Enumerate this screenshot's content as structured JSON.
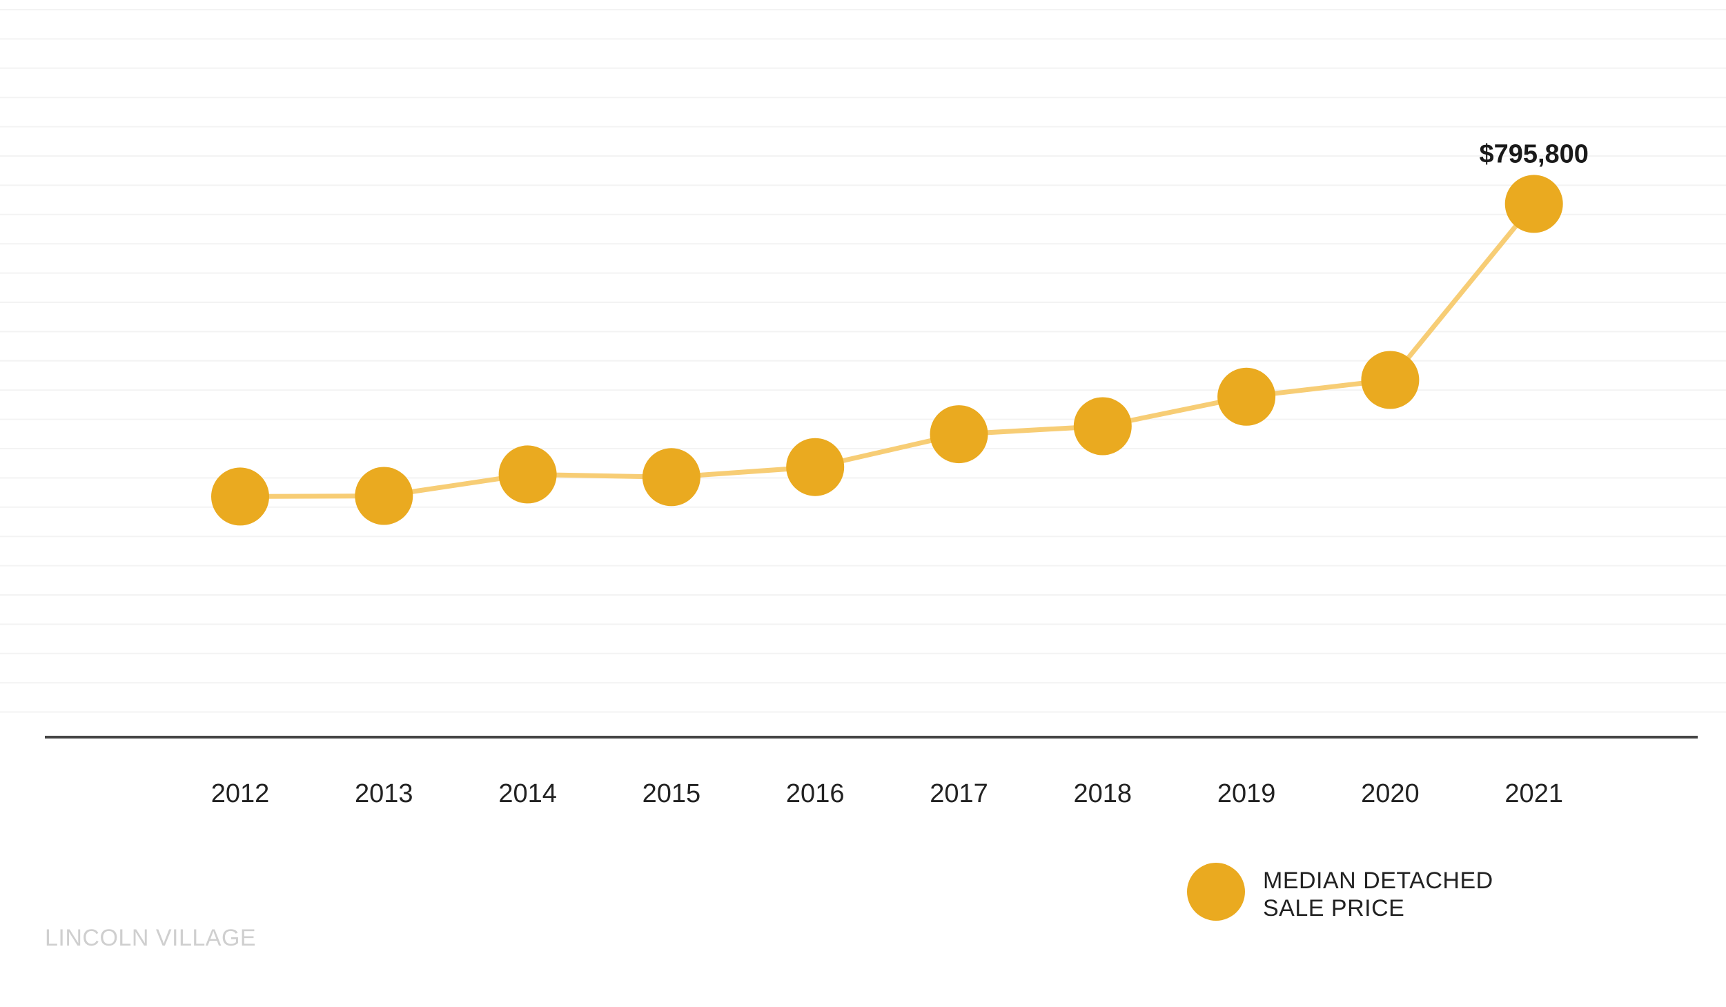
{
  "chart_data": {
    "type": "line",
    "title": "",
    "xlabel": "",
    "ylabel": "",
    "categories": [
      "2012",
      "2013",
      "2014",
      "2015",
      "2016",
      "2017",
      "2018",
      "2019",
      "2020",
      "2021"
    ],
    "series": [
      {
        "name": "MEDIAN DETACHED SALE PRICE",
        "values": [
          359000,
          360000,
          392000,
          388000,
          403000,
          452000,
          464000,
          508000,
          533000,
          795800
        ]
      }
    ],
    "data_labels": [
      {
        "index": 9,
        "text": "$795,800"
      }
    ],
    "ylim": [
      0,
      1100000
    ],
    "grid": true,
    "legend_position": "bottom-right",
    "legend": {
      "line1": "MEDIAN DETACHED",
      "line2": "SALE PRICE"
    },
    "colors": {
      "marker": "#EAAA20",
      "line": "#F7CD75",
      "axis": "#444444",
      "grid": "#f3f3f3"
    }
  },
  "watermark": "LINCOLN VILLAGE"
}
